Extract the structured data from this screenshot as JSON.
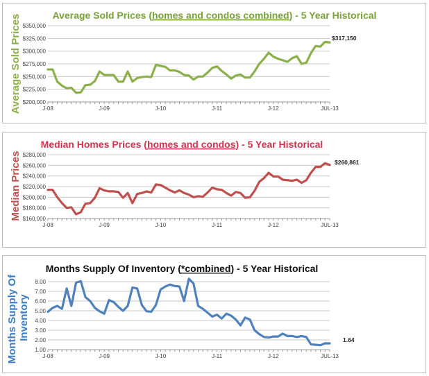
{
  "chart_data": [
    {
      "type": "line",
      "title_parts": [
        "Average Sold Prices (",
        "homes and condos combined",
        ") - 5 Year Historical"
      ],
      "ylabel": "Average Sold Prices",
      "xlabel": "",
      "color": "#8cb04c",
      "title_color": "#77a33a",
      "ylim": [
        200000,
        350000
      ],
      "y_ticks": [
        200000,
        225000,
        250000,
        275000,
        300000,
        325000,
        350000
      ],
      "y_tick_labels": [
        "$200,000",
        "$225,000",
        "$250,000",
        "$275,000",
        "$300,000",
        "$325,000",
        "$350,000"
      ],
      "x_tick_labels": [
        {
          "index": 0,
          "label": "J-08"
        },
        {
          "index": 12,
          "label": "J-09"
        },
        {
          "index": 24,
          "label": "J-10"
        },
        {
          "index": 36,
          "label": "J-11"
        },
        {
          "index": 48,
          "label": "J-12"
        },
        {
          "index": 60,
          "label": "JUL-13"
        }
      ],
      "grid": true,
      "end_label": "$317,150",
      "values": [
        264000,
        264000,
        240000,
        232000,
        227000,
        228000,
        218000,
        219000,
        233000,
        234000,
        241000,
        260000,
        253000,
        253000,
        253000,
        240000,
        240000,
        260000,
        240000,
        247000,
        249000,
        250000,
        249000,
        273000,
        271000,
        269000,
        262000,
        262000,
        259000,
        253000,
        252000,
        244000,
        250000,
        250000,
        258000,
        267000,
        270000,
        261000,
        254000,
        246000,
        252000,
        254000,
        248000,
        248000,
        260000,
        275000,
        285000,
        297000,
        289000,
        285000,
        282000,
        279000,
        286000,
        290000,
        275000,
        277000,
        296000,
        310000,
        309000,
        318000,
        317150
      ]
    },
    {
      "type": "line",
      "title_parts": [
        "Median Homes Prices (",
        "homes and condos",
        ") - 5 Year Historical"
      ],
      "ylabel": "Median Prices",
      "xlabel": "",
      "color": "#c0504d",
      "title_color": "#d0344f",
      "ylim": [
        160000,
        280000
      ],
      "y_ticks": [
        160000,
        180000,
        200000,
        220000,
        240000,
        260000,
        280000
      ],
      "y_tick_labels": [
        "$160,000",
        "$180,000",
        "$200,000",
        "$220,000",
        "$240,000",
        "$260,000",
        "$280,000"
      ],
      "x_tick_labels": [
        {
          "index": 0,
          "label": "J-08"
        },
        {
          "index": 12,
          "label": "J-09"
        },
        {
          "index": 24,
          "label": "J-10"
        },
        {
          "index": 36,
          "label": "J-11"
        },
        {
          "index": 48,
          "label": "J-12"
        },
        {
          "index": 60,
          "label": "JUL-13"
        }
      ],
      "grid": true,
      "end_label": "$260,861",
      "values": [
        214000,
        214000,
        200000,
        189000,
        180000,
        181000,
        168000,
        172000,
        188000,
        189000,
        199000,
        217000,
        213000,
        211000,
        211000,
        210000,
        199000,
        208000,
        189000,
        206000,
        208000,
        211000,
        209000,
        224000,
        223000,
        218000,
        213000,
        209000,
        213000,
        208000,
        205000,
        200000,
        202000,
        201000,
        209000,
        218000,
        215000,
        214000,
        208000,
        203000,
        210000,
        208000,
        199000,
        200000,
        212000,
        229000,
        236000,
        246000,
        239000,
        239000,
        233000,
        232000,
        231000,
        233000,
        227000,
        232000,
        246000,
        257000,
        257000,
        264000,
        260861
      ]
    },
    {
      "type": "line",
      "title_parts": [
        "Months Supply Of Inventory (",
        "*combined",
        ") - 5 Year Historical"
      ],
      "ylabel": "Months Supply Of Inventory",
      "xlabel": "",
      "color": "#4f81bd",
      "title_color": "#111111",
      "ylabel_color": "#3a7cc4",
      "ylim": [
        1,
        8
      ],
      "y_ticks": [
        1,
        2,
        3,
        4,
        5,
        6,
        7,
        8
      ],
      "y_tick_labels": [
        "1.00",
        "2.00",
        "3.00",
        "4.00",
        "5.00",
        "6.00",
        "7.00",
        "8.00"
      ],
      "x_tick_labels": [
        {
          "index": 0,
          "label": "J-08"
        },
        {
          "index": 12,
          "label": "J-09"
        },
        {
          "index": 24,
          "label": "J-10"
        },
        {
          "index": 36,
          "label": "J-11"
        },
        {
          "index": 48,
          "label": "J-12"
        },
        {
          "index": 60,
          "label": "JUL-13"
        }
      ],
      "grid": true,
      "end_label": "1.64",
      "values": [
        4.9,
        5.3,
        5.5,
        5.2,
        7.3,
        5.5,
        7.9,
        8.05,
        6.4,
        6.0,
        5.3,
        4.95,
        4.7,
        6.1,
        5.9,
        5.4,
        5.0,
        5.5,
        7.4,
        7.3,
        5.6,
        4.95,
        4.9,
        5.6,
        7.2,
        7.5,
        7.7,
        7.55,
        7.5,
        6.0,
        8.3,
        7.8,
        5.5,
        5.2,
        4.8,
        4.4,
        4.6,
        4.2,
        4.7,
        4.5,
        4.1,
        3.5,
        4.3,
        4.1,
        3.0,
        2.6,
        2.3,
        2.25,
        2.35,
        2.35,
        2.65,
        2.4,
        2.4,
        2.3,
        2.4,
        2.3,
        1.55,
        1.5,
        1.45,
        1.65,
        1.64
      ]
    }
  ]
}
